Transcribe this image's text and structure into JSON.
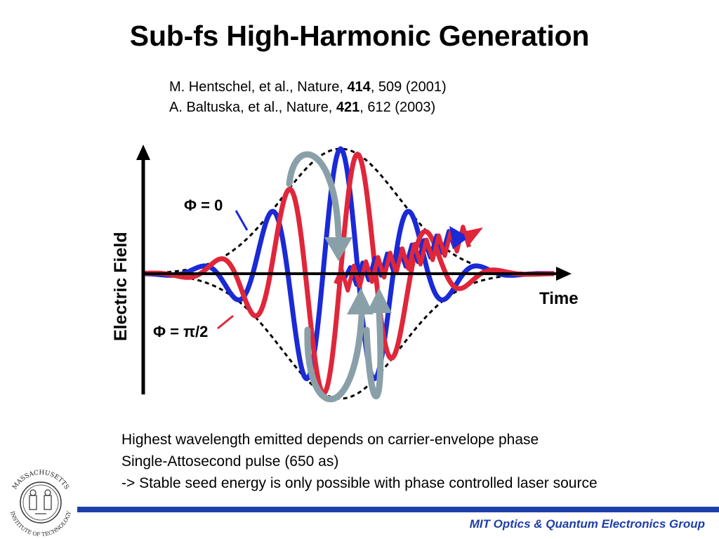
{
  "slide": {
    "title": "Sub-fs High-Harmonic Generation",
    "references": [
      {
        "pre": "M. Hentschel, et al., Nature, ",
        "vol": "414",
        "post": ", 509 (2001)"
      },
      {
        "pre": "A. Baltuska, et al., Nature, ",
        "vol": "421",
        "post": ", 612 (2003)"
      }
    ],
    "notes": [
      "Highest wavelength emitted depends on carrier-envelope phase",
      "Single-Attosecond pulse (650 as)",
      "-> Stable seed energy is only possible with phase controlled laser source"
    ],
    "footer": "MIT Optics & Quantum Electronics Group"
  },
  "figure": {
    "y_axis_label": "Electric Field",
    "x_axis_label": "Time",
    "phase_zero_label": "Φ = 0",
    "phase_pi2_label": "Φ = π/2",
    "colors": {
      "cos_wave": "#1a2ad6",
      "sin_wave": "#e0263a",
      "arrows": "#8aa0a8",
      "envelope": "#000000",
      "axis": "#000000"
    }
  },
  "logo": {
    "top_text": "MASSACHUSETTS",
    "bottom_text": "INSTITUTE OF TECHNOLOGY"
  }
}
